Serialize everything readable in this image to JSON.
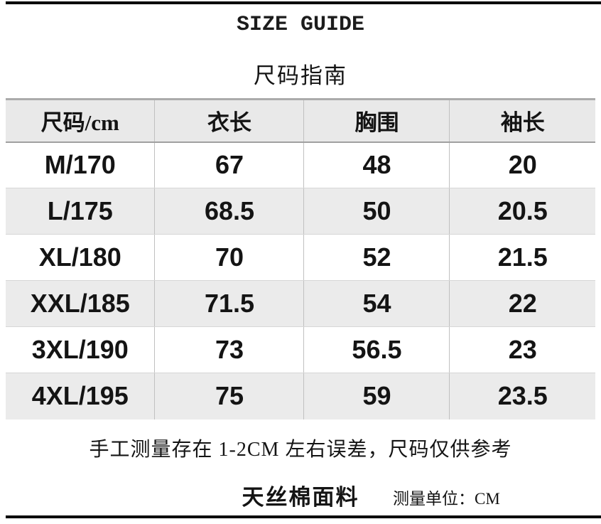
{
  "title": "SIZE GUIDE",
  "subtitle": "尺码指南",
  "table": {
    "headers": [
      "尺码/cm",
      "衣长",
      "胸围",
      "袖长"
    ],
    "rows": [
      [
        "M/170",
        "67",
        "48",
        "20"
      ],
      [
        "L/175",
        "68.5",
        "50",
        "20.5"
      ],
      [
        "XL/180",
        "70",
        "52",
        "21.5"
      ],
      [
        "XXL/185",
        "71.5",
        "54",
        "22"
      ],
      [
        "3XL/190",
        "73",
        "56.5",
        "23"
      ],
      [
        "4XL/195",
        "75",
        "59",
        "23.5"
      ]
    ]
  },
  "notes": {
    "tolerance": "手工测量存在 1-2CM 左右误差，尺码仅供参考",
    "fabric": "天丝棉面料",
    "unit": "测量单位：CM"
  },
  "colors": {
    "background": "#ffffff",
    "text": "#141414",
    "header_bg": "#e9e9e9",
    "row_alt_bg": "#ebebeb",
    "column_divider": "#c0c0c0",
    "header_border": "#a0a0a0",
    "row_divider": "#d6d6d6",
    "table_top_border": "#ababab",
    "bottom_rule": "#000000"
  }
}
